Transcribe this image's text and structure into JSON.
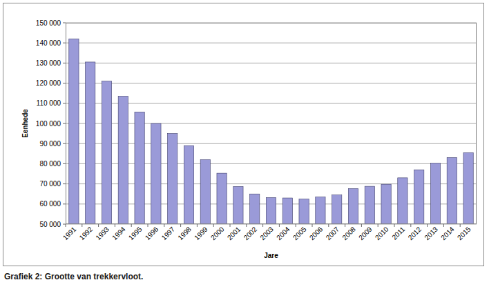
{
  "chart_data": {
    "type": "bar",
    "title": "Grafiek 2: Grootte van trekkervloot.",
    "x_label": "Jare",
    "y_label": "Eenhede",
    "categories": [
      "1991",
      "1992",
      "1993",
      "1994",
      "1995",
      "1996",
      "1997",
      "1998",
      "1999",
      "2000",
      "2001",
      "2002",
      "2003",
      "2004",
      "2005",
      "2006",
      "2007",
      "2008",
      "2009",
      "2010",
      "2011",
      "2012",
      "2013",
      "2014",
      "2015"
    ],
    "values": [
      142000,
      130500,
      121000,
      113500,
      105700,
      100000,
      95000,
      89000,
      82000,
      75300,
      68700,
      65000,
      63200,
      63000,
      62500,
      63500,
      64500,
      67700,
      68800,
      69800,
      73000,
      77000,
      80300,
      83100,
      85500
    ],
    "color": "#9a9ad8",
    "ylim": [
      50000,
      150000
    ],
    "yticks": [
      {
        "value": 50000,
        "label": "50 000"
      },
      {
        "value": 60000,
        "label": "60 000"
      },
      {
        "value": 70000,
        "label": "70 000"
      },
      {
        "value": 80000,
        "label": "80 000"
      },
      {
        "value": 90000,
        "label": "90 000"
      },
      {
        "value": 100000,
        "label": "100 000"
      },
      {
        "value": 110000,
        "label": "110 000"
      },
      {
        "value": 120000,
        "label": "120 000"
      },
      {
        "value": 130000,
        "label": "130 000"
      },
      {
        "value": 140000,
        "label": "140 000"
      },
      {
        "value": 150000,
        "label": "150 000"
      }
    ],
    "grid": true
  }
}
